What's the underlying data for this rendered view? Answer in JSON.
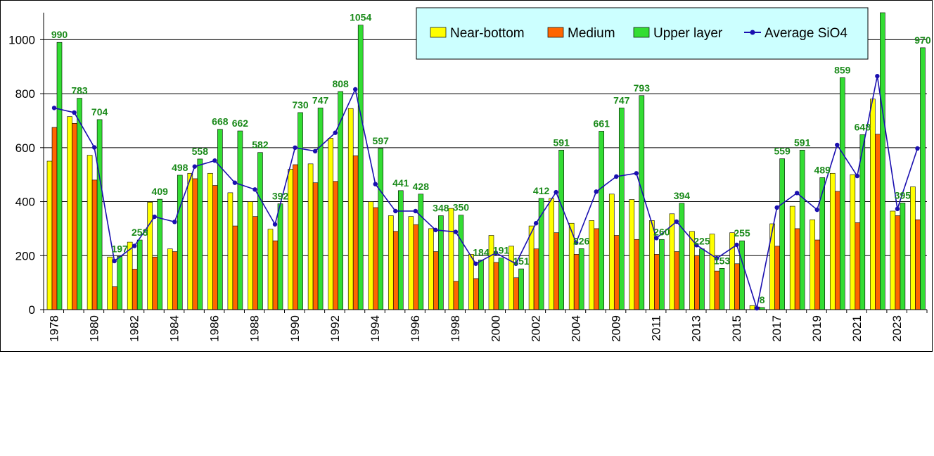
{
  "chart_data": {
    "type": "bar",
    "title": "",
    "xlabel": "",
    "ylabel": "",
    "ylim": [
      0,
      1100
    ],
    "yticks": [
      0,
      200,
      400,
      600,
      800,
      1000
    ],
    "grid": true,
    "legend_position": "top-right",
    "categories": [
      "1978",
      "1979",
      "1980",
      "1981",
      "1982",
      "1983",
      "1984",
      "1985",
      "1986",
      "1987",
      "1988",
      "1989",
      "1990",
      "1991",
      "1992",
      "1993",
      "1994",
      "1995",
      "1996",
      "1997",
      "1998",
      "1999",
      "2000",
      "2001",
      "2002",
      "2003",
      "2004",
      "2005",
      "2009",
      "2010",
      "2011",
      "2012",
      "2013",
      "2014",
      "2015",
      "2016",
      "2017",
      "2018",
      "2019",
      "2020",
      "2021",
      "2022",
      "2023",
      "2024"
    ],
    "tick_labels": [
      "1978",
      "",
      "1980",
      "",
      "1982",
      "",
      "1984",
      "",
      "1986",
      "",
      "1988",
      "",
      "1990",
      "",
      "1992",
      "",
      "1994",
      "",
      "1996",
      "",
      "1998",
      "",
      "2000",
      "",
      "2002",
      "",
      "2004",
      "",
      "2009",
      "",
      "2011",
      "",
      "2013",
      "",
      "2015",
      "",
      "2017",
      "",
      "2019",
      "",
      "2021",
      "",
      "2023",
      ""
    ],
    "series": [
      {
        "name": "Near-bottom",
        "kind": "bar",
        "color": "#ffff00",
        "values": [
          550,
          715,
          572,
          195,
          250,
          398,
          225,
          505,
          505,
          433,
          400,
          298,
          520,
          540,
          635,
          745,
          400,
          348,
          345,
          300,
          375,
          205,
          275,
          235,
          310,
          412,
          320,
          330,
          428,
          408,
          330,
          355,
          290,
          280,
          285,
          15,
          318,
          383,
          333,
          505,
          500,
          780,
          365,
          455
        ]
      },
      {
        "name": "Medium",
        "kind": "bar",
        "color": "#ff6600",
        "values": [
          675,
          690,
          480,
          85,
          150,
          195,
          215,
          485,
          460,
          310,
          345,
          255,
          537,
          470,
          475,
          570,
          378,
          290,
          315,
          215,
          105,
          115,
          175,
          118,
          225,
          285,
          205,
          300,
          275,
          260,
          205,
          215,
          200,
          143,
          170,
          10,
          235,
          300,
          258,
          438,
          322,
          650,
          348,
          333
        ]
      },
      {
        "name": "Upper layer",
        "kind": "bar",
        "color": "#33dd33",
        "values": [
          990,
          783,
          704,
          197,
          258,
          409,
          498,
          558,
          668,
          662,
          582,
          392,
          730,
          747,
          808,
          1054,
          597,
          441,
          428,
          348,
          350,
          184,
          191,
          151,
          412,
          591,
          226,
          661,
          747,
          793,
          260,
          394,
          225,
          153,
          255,
          8,
          559,
          591,
          489,
          859,
          648,
          1100,
          395,
          970
        ]
      },
      {
        "name": "Average SiO4",
        "kind": "line",
        "color": "#1a0fb0",
        "values": [
          747,
          730,
          601,
          180,
          236,
          344,
          325,
          530,
          552,
          470,
          445,
          316,
          600,
          587,
          655,
          816,
          465,
          365,
          365,
          295,
          288,
          170,
          210,
          170,
          320,
          435,
          248,
          437,
          493,
          505,
          265,
          326,
          239,
          190,
          240,
          5,
          378,
          432,
          370,
          610,
          495,
          865,
          373,
          597
        ]
      }
    ],
    "data_labels": [
      "990",
      "783",
      "704",
      "197",
      "258",
      "409",
      "498",
      "558",
      "668",
      "662",
      "582",
      "392",
      "730",
      "747",
      "808",
      "1054",
      "597",
      "441",
      "428",
      "348",
      "350",
      "184",
      "191",
      "151",
      "412",
      "591",
      "226",
      "661",
      "747",
      "793",
      "260",
      "394",
      "225",
      "153",
      "255",
      "8",
      "559",
      "591",
      "489",
      "859",
      "648",
      "",
      "395",
      "970"
    ]
  }
}
